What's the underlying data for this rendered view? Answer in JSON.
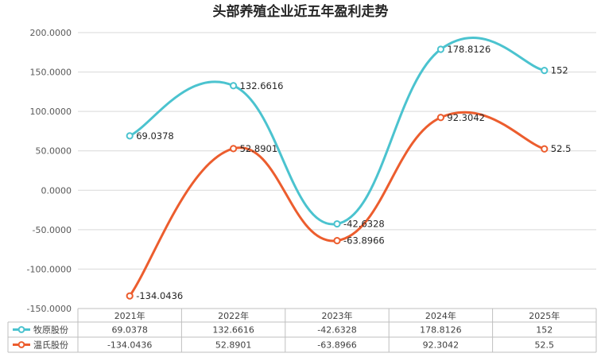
{
  "chart_data": {
    "type": "line",
    "title": "头部养殖企业近五年盈利走势",
    "categories": [
      "2021年",
      "2022年",
      "2023年",
      "2024年",
      "2025年"
    ],
    "series": [
      {
        "name": "牧原股份",
        "color": "#4bc3cf",
        "values": [
          69.0378,
          132.6616,
          -42.6328,
          178.8126,
          152
        ],
        "labels": [
          "69.0378",
          "132.6616",
          "-42.6328",
          "178.8126",
          "152"
        ]
      },
      {
        "name": "温氏股份",
        "color": "#ec5d2e",
        "values": [
          -134.0436,
          52.8901,
          -63.8966,
          92.3042,
          52.5
        ],
        "labels": [
          "-134.0436",
          "52.8901",
          "-63.8966",
          "92.3042",
          "52.5"
        ]
      }
    ],
    "yticks": [
      "200.0000",
      "150.0000",
      "100.0000",
      "50.0000",
      "0.0000",
      "-50.0000",
      "-100.0000",
      "-150.0000"
    ],
    "ylim": [
      -150,
      200
    ],
    "grid": true,
    "smooth": true,
    "legend": "data-table"
  }
}
